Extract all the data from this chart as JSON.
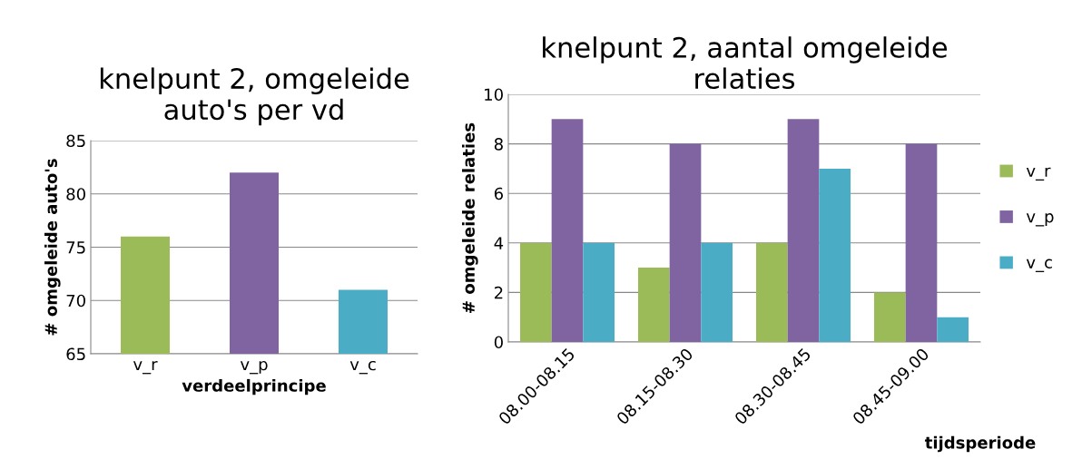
{
  "chart_data": [
    {
      "type": "bar",
      "title": "knelpunt 2, omgeleide auto's per vd",
      "xlabel": "verdeelprincipe",
      "ylabel": "# omgeleide auto's",
      "categories": [
        "v_r",
        "v_p",
        "v_c"
      ],
      "values": [
        76,
        82,
        71
      ],
      "colors": [
        "#9bbb59",
        "#8064a2",
        "#4bacc6"
      ],
      "ylim": [
        65,
        85
      ],
      "yticks": [
        65,
        70,
        75,
        80,
        85
      ],
      "grid": "y",
      "legend": false
    },
    {
      "type": "bar",
      "title": "knelpunt 2, aantal omgeleide relaties",
      "xlabel": "tijdsperiode",
      "ylabel": "# omgeleide relaties",
      "categories": [
        "08.00-08.15",
        "08.15-08.30",
        "08.30-08.45",
        "08.45-09.00"
      ],
      "series": [
        {
          "name": "v_r",
          "color": "#9bbb59",
          "values": [
            4,
            3,
            4,
            2
          ]
        },
        {
          "name": "v_p",
          "color": "#8064a2",
          "values": [
            9,
            8,
            9,
            8
          ]
        },
        {
          "name": "v_c",
          "color": "#4bacc6",
          "values": [
            4,
            4,
            7,
            1
          ]
        }
      ],
      "ylim": [
        0,
        10
      ],
      "yticks": [
        0,
        2,
        4,
        6,
        8,
        10
      ],
      "grid": "y",
      "legend": "right"
    }
  ]
}
